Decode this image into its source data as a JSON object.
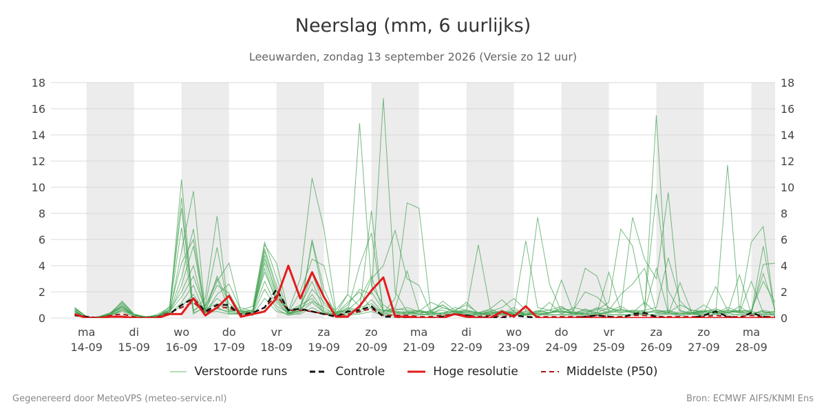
{
  "header": {
    "title": "Neerslag (mm, 6 uurlijks)",
    "subtitle": "Leeuwarden, zondag 13 september 2026 (Versie zo 12 uur)"
  },
  "footer": {
    "left": "Gegenereerd door MeteoVPS (meteo-service.nl)",
    "right": "Bron: ECMWF AIFS/KNMI Ens"
  },
  "colors": {
    "ensemble": "#3a9e4a",
    "control": "#111111",
    "high_res": "#e31a1c",
    "median": "#a31515",
    "weekend_band": "#ececec",
    "grid": "#d9d9d9"
  },
  "chart_data": {
    "type": "line",
    "title": "Neerslag (mm, 6 uurlijks)",
    "subtitle": "Leeuwarden, zondag 13 september 2026 (Versie zo 12 uur)",
    "ylim": [
      0,
      18
    ],
    "yticks": [
      0,
      2,
      4,
      6,
      8,
      10,
      12,
      14,
      16,
      18
    ],
    "xlim": [
      -0.75,
      14.5
    ],
    "y_axis_both_sides": true,
    "grid": true,
    "legend_position": "bottom",
    "x_day_ticks": [
      {
        "day": "ma",
        "date": "14-09"
      },
      {
        "day": "di",
        "date": "15-09"
      },
      {
        "day": "wo",
        "date": "16-09"
      },
      {
        "day": "do",
        "date": "17-09"
      },
      {
        "day": "vr",
        "date": "18-09"
      },
      {
        "day": "za",
        "date": "19-09"
      },
      {
        "day": "zo",
        "date": "20-09"
      },
      {
        "day": "ma",
        "date": "21-09"
      },
      {
        "day": "di",
        "date": "22-09"
      },
      {
        "day": "wo",
        "date": "23-09"
      },
      {
        "day": "do",
        "date": "24-09"
      },
      {
        "day": "vr",
        "date": "25-09"
      },
      {
        "day": "za",
        "date": "26-09"
      },
      {
        "day": "zo",
        "date": "27-09"
      },
      {
        "day": "ma",
        "date": "28-09"
      }
    ],
    "shaded_bands_days": [
      [
        0,
        1
      ],
      [
        2,
        3
      ],
      [
        4,
        5
      ],
      [
        6,
        7
      ],
      [
        8,
        9
      ],
      [
        10,
        11
      ],
      [
        12,
        13
      ],
      [
        14,
        14.5
      ]
    ],
    "x": [
      -0.25,
      0,
      0.25,
      0.5,
      0.75,
      1,
      1.25,
      1.5,
      1.75,
      2,
      2.25,
      2.5,
      2.75,
      3,
      3.25,
      3.5,
      3.75,
      4,
      4.25,
      4.5,
      4.75,
      5,
      5.25,
      5.5,
      5.75,
      6,
      6.25,
      6.5,
      6.75,
      7,
      7.25,
      7.5,
      7.75,
      8,
      8.25,
      8.5,
      8.75,
      9,
      9.25,
      9.5,
      9.75,
      10,
      10.25,
      10.5,
      10.75,
      11,
      11.25,
      11.5,
      11.75,
      12,
      12.25,
      12.5,
      12.75,
      13,
      13.25,
      13.5,
      13.75,
      14,
      14.25,
      14.5
    ],
    "series": [
      {
        "name": "Verstoorde runs",
        "role": "ensemble",
        "values": [
          [
            0.8,
            0.1,
            0,
            0.3,
            1.3,
            0.3,
            0.1,
            0.2,
            0.6,
            10.6,
            0.5,
            1.5,
            7.8,
            0.3,
            0.4,
            0.6,
            5.6,
            4.2,
            0.5,
            3.0,
            10.7,
            6.8,
            0.6,
            1.8,
            14.9,
            2.5,
            1.0,
            0.4,
            0.3,
            0.5,
            1.2,
            0.8,
            0.5,
            1.2,
            0.3,
            0.5,
            0.3,
            0.6,
            0.3,
            0.2,
            0.4,
            0.8,
            0.4,
            0.3,
            0.2,
            0.5,
            0.7,
            0.4,
            0.3,
            15.5,
            0.4,
            0.3,
            0.4,
            0.2,
            0.3,
            11.7,
            0.4,
            0.3,
            0.5,
            0.2
          ],
          [
            0.6,
            0,
            0.1,
            0.4,
            0.9,
            0.2,
            0,
            0.3,
            0.8,
            8.4,
            0.6,
            1.0,
            5.4,
            0.5,
            0.6,
            0.9,
            5.8,
            3.1,
            0.4,
            2.0,
            4.5,
            4.0,
            0.3,
            1.0,
            2.2,
            1.8,
            16.8,
            2.0,
            0.5,
            0.3,
            0.6,
            1.0,
            0.4,
            0.6,
            0.4,
            0.7,
            1.4,
            0.5,
            5.9,
            0.8,
            0.6,
            0.9,
            0.3,
            0.4,
            0.6,
            1.2,
            6.8,
            5.5,
            0.9,
            9.5,
            2.1,
            0.5,
            0.4,
            1.0,
            0.4,
            0.6,
            0.5,
            5.8,
            7.0,
            0.3
          ],
          [
            0.5,
            0,
            0.1,
            0.2,
            1.0,
            0.2,
            0.1,
            0.1,
            0.9,
            9.2,
            0.4,
            0.8,
            2.8,
            4.2,
            0.5,
            0.4,
            4.5,
            2.0,
            0.3,
            0.5,
            6.0,
            2.2,
            0.2,
            0.8,
            0.6,
            8.2,
            0.4,
            1.5,
            8.8,
            8.4,
            0.5,
            0.3,
            0.8,
            0.6,
            5.6,
            0.7,
            0.3,
            0.8,
            0.2,
            0.4,
            1.2,
            0.3,
            0.8,
            0.6,
            0.3,
            0.4,
            0.6,
            7.7,
            4.5,
            3.0,
            9.6,
            0.6,
            0.3,
            0.5,
            0.4,
            0.3,
            0.9,
            0.3,
            4.1,
            4.2
          ],
          [
            0.7,
            0.1,
            0,
            0.3,
            1.1,
            0.3,
            0,
            0.2,
            0.7,
            6.9,
            0.3,
            0.9,
            3.0,
            0.6,
            0.8,
            0.5,
            5.3,
            2.5,
            0.3,
            0.6,
            5.8,
            1.6,
            0.5,
            0.4,
            0.7,
            3.0,
            4.0,
            6.7,
            3.0,
            2.5,
            0.4,
            1.3,
            0.6,
            1.0,
            0.4,
            0.3,
            0.6,
            0.3,
            0.5,
            7.7,
            2.6,
            0.5,
            0.3,
            0.7,
            0.4,
            3.5,
            0.6,
            0.5,
            0.3,
            0.6,
            0.4,
            0.3,
            0.4,
            0.5,
            0.7,
            0.4,
            0.5,
            0.4,
            5.5,
            0.5
          ],
          [
            0.4,
            0,
            0.1,
            0.3,
            0.8,
            0.2,
            0.1,
            0.1,
            0.4,
            5.1,
            9.7,
            0.5,
            0.7,
            0.5,
            0.4,
            0.3,
            4.2,
            1.5,
            0.5,
            1.0,
            1.5,
            0.4,
            0.3,
            1.2,
            2.0,
            0.7,
            0.6,
            0.5,
            0.4,
            0.3,
            0.3,
            0.4,
            0.5,
            0.3,
            0.2,
            0.4,
            0.3,
            0.2,
            0.3,
            0.4,
            0.3,
            2.9,
            0.5,
            3.8,
            3.2,
            0.5,
            0.9,
            0.4,
            1.2,
            0.4,
            0.3,
            2.7,
            0.4,
            0.6,
            0.5,
            0.4,
            3.3,
            0.3,
            0.5,
            0.3
          ],
          [
            0.6,
            0,
            0.1,
            0.2,
            0.7,
            0.2,
            0.1,
            0.2,
            0.6,
            4.2,
            6.0,
            0.6,
            2.5,
            1.9,
            0.3,
            0.5,
            3.8,
            1.2,
            0.3,
            0.8,
            3.4,
            1.0,
            0.4,
            0.6,
            4.0,
            6.5,
            0.5,
            0.8,
            3.6,
            0.6,
            0.4,
            0.3,
            0.6,
            0.4,
            0.3,
            0.5,
            0.8,
            1.5,
            0.6,
            0.3,
            0.4,
            0.7,
            0.6,
            2.0,
            1.6,
            0.8,
            0.4,
            0.6,
            0.5,
            3.8,
            0.4,
            0.3,
            0.6,
            0.4,
            2.4,
            0.6,
            0.4,
            2.8,
            0.4,
            0.5
          ],
          [
            0.7,
            0.1,
            0,
            0.3,
            0.9,
            0.3,
            0,
            0.1,
            0.5,
            3.1,
            6.8,
            0.4,
            1.8,
            2.6,
            0.6,
            0.4,
            5.1,
            2.2,
            0.4,
            0.5,
            2.2,
            1.2,
            0.3,
            0.6,
            1.4,
            3.2,
            0.5,
            0.7,
            0.6,
            0.5,
            0.3,
            0.8,
            0.5,
            0.6,
            0.3,
            0.4,
            0.3,
            0.5,
            0.2,
            0.6,
            0.4,
            0.5,
            0.4,
            0.3,
            0.8,
            0.6,
            1.8,
            2.6,
            3.8,
            0.5,
            0.4,
            1.0,
            0.6,
            0.5,
            0.4,
            0.8,
            0.5,
            0.6,
            2.8,
            1.2
          ],
          [
            0.5,
            0,
            0.1,
            0.2,
            0.6,
            0.2,
            0.1,
            0.2,
            0.4,
            2.5,
            5.5,
            0.4,
            3.2,
            1.1,
            0.5,
            0.6,
            4.8,
            1.7,
            0.5,
            0.7,
            1.3,
            0.8,
            0.3,
            1.8,
            0.9,
            2.0,
            0.6,
            0.4,
            0.5,
            0.4,
            0.5,
            1.0,
            0.4,
            0.5,
            0.4,
            0.6,
            0.4,
            0.3,
            0.4,
            0.5,
            0.6,
            0.4,
            0.5,
            0.3,
            0.4,
            0.8,
            0.5,
            0.4,
            0.6,
            0.8,
            4.6,
            1.3,
            0.4,
            0.3,
            0.5,
            0.4,
            0.6,
            0.5,
            3.4,
            0.6
          ],
          [
            0.8,
            0.1,
            0,
            0.4,
            1.2,
            0.3,
            0,
            0.1,
            0.6,
            2.0,
            4.0,
            0.5,
            1.5,
            0.8,
            0.4,
            0.5,
            3.5,
            1.4,
            0.3,
            0.9,
            2.8,
            0.6,
            0.4,
            0.7,
            0.5,
            1.4,
            0.4,
            0.6,
            0.8,
            0.5,
            0.4,
            0.6,
            0.3,
            0.5,
            0.4,
            0.3,
            0.5,
            0.4,
            0.3,
            0.5,
            0.4,
            0.6,
            0.3,
            0.5,
            0.7,
            0.4,
            0.6,
            0.5,
            0.4,
            0.6,
            0.5,
            0.4,
            0.3,
            0.4,
            0.6,
            0.5,
            0.4,
            0.3,
            0.6,
            0.4
          ],
          [
            0.6,
            0,
            0.1,
            0.3,
            0.8,
            0.2,
            0.1,
            0.2,
            0.5,
            1.6,
            3.2,
            0.7,
            1.1,
            0.6,
            0.5,
            0.4,
            2.8,
            0.9,
            0.4,
            0.6,
            1.8,
            0.5,
            0.3,
            0.4,
            0.8,
            1.1,
            0.3,
            0.5,
            0.4,
            0.6,
            0.3,
            0.4,
            0.5,
            0.4,
            0.3,
            0.5,
            0.3,
            0.4,
            0.5,
            0.3,
            0.4,
            0.5,
            0.4,
            0.6,
            0.3,
            0.5,
            0.4,
            0.6,
            0.5,
            0.4,
            0.6,
            0.3,
            0.4,
            0.5,
            0.3,
            0.6,
            0.4,
            0.5,
            0.3,
            0.5
          ],
          [
            0.5,
            0,
            0,
            0.2,
            0.5,
            0.1,
            0.1,
            0.1,
            0.3,
            1.2,
            2.5,
            0.3,
            0.8,
            0.4,
            0.3,
            0.3,
            2.2,
            0.7,
            0.2,
            0.4,
            1.2,
            0.4,
            0.2,
            0.3,
            0.4,
            0.8,
            0.3,
            0.3,
            0.4,
            0.3,
            0.2,
            0.3,
            0.4,
            0.3,
            0.2,
            0.3,
            0.2,
            0.3,
            0.2,
            0.3,
            0.2,
            0.3,
            0.2,
            0.3,
            0.4,
            0.3,
            0.2,
            0.3,
            0.2,
            0.3,
            0.4,
            0.2,
            0.3,
            0.2,
            0.3,
            0.4,
            0.2,
            0.3,
            0.2,
            0.3
          ],
          [
            0.4,
            0,
            0.1,
            0.2,
            0.6,
            0.2,
            0.1,
            0.1,
            0.4,
            0.9,
            1.8,
            0.4,
            0.5,
            0.3,
            0.3,
            0.2,
            1.5,
            0.5,
            0.3,
            0.3,
            0.8,
            0.3,
            0.2,
            0.2,
            0.3,
            0.5,
            0.2,
            0.2,
            0.3,
            0.2,
            0.3,
            0.2,
            0.3,
            0.2,
            0.3,
            0.2,
            0.3,
            0.2,
            0.3,
            0.2,
            0.3,
            0.2,
            0.3,
            0.2,
            0.3,
            0.2,
            0.3,
            0.2,
            0.3,
            0.2,
            0.3,
            0.2,
            0.3,
            0.2,
            0.3,
            0.2,
            0.3,
            0.2,
            0.3,
            0.2
          ]
        ]
      },
      {
        "name": "Controle",
        "role": "control",
        "values": [
          0.2,
          0.1,
          0,
          0.1,
          0.1,
          0,
          0,
          0,
          0.3,
          1.0,
          1.5,
          0.5,
          1.0,
          1.0,
          0.2,
          0.4,
          0.8,
          2.2,
          0.6,
          0.7,
          0.5,
          0.3,
          0.1,
          0.5,
          0.6,
          0.9,
          0.1,
          0.1,
          0,
          0,
          0,
          0.1,
          0.3,
          0.2,
          0,
          0.1,
          0,
          0.2,
          0.1,
          0,
          0,
          0,
          0,
          0.1,
          0.2,
          0.1,
          0,
          0.3,
          0.4,
          0.1,
          0,
          0,
          0,
          0.2,
          0.5,
          0.1,
          0,
          0.4,
          0.1,
          0
        ]
      },
      {
        "name": "Hoge resolutie",
        "role": "high_res",
        "values": [
          0.3,
          0,
          0,
          0.1,
          0.1,
          0,
          0,
          0,
          0.3,
          0.3,
          1.5,
          0.2,
          0.8,
          1.7,
          0.1,
          0.3,
          0.5,
          1.5,
          4.0,
          1.5,
          3.5,
          1.6,
          0.1,
          0.1,
          0.9,
          2.1,
          3.1,
          0.1,
          0.1,
          0,
          0,
          0,
          0.3,
          0.1,
          0,
          0,
          0.5,
          0.1,
          0.9,
          0,
          0,
          0,
          0,
          0,
          0,
          0,
          0,
          0,
          0,
          0,
          0,
          0,
          0,
          0,
          0,
          0,
          0,
          0,
          0,
          0
        ]
      },
      {
        "name": "Middelste (P50)",
        "role": "median",
        "values": [
          0.3,
          0.1,
          0,
          0.2,
          0.3,
          0.1,
          0,
          0.1,
          0.4,
          0.8,
          1.2,
          0.4,
          0.8,
          0.8,
          0.3,
          0.4,
          0.8,
          1.7,
          0.6,
          0.6,
          0.5,
          0.3,
          0.2,
          0.3,
          0.5,
          0.7,
          0.2,
          0.2,
          0.2,
          0.1,
          0.1,
          0.2,
          0.3,
          0.2,
          0.1,
          0.2,
          0.1,
          0.2,
          0.1,
          0.1,
          0.1,
          0.1,
          0.1,
          0.1,
          0.2,
          0.1,
          0.1,
          0.2,
          0.2,
          0.1,
          0.1,
          0.1,
          0.1,
          0.1,
          0.2,
          0.1,
          0.1,
          0.2,
          0.1,
          0.1
        ]
      }
    ]
  }
}
